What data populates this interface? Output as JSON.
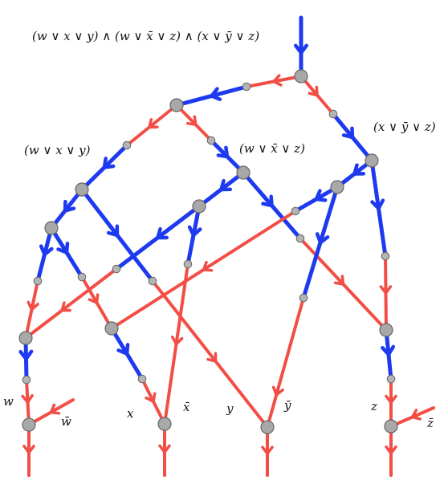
{
  "formula": "(w ∨ x ∨ y) ∧ (w ∨ x̄ ∨ z) ∧ (x ∨ ȳ ∨ z)",
  "clauses": [
    "(w ∨ x ∨ y)",
    "(w ∨ x̄ ∨ z)",
    "(x ∨ ȳ ∨ z)"
  ],
  "literals": {
    "w": "w",
    "w_bar": "w̄",
    "x": "x",
    "x_bar": "x̄",
    "y": "y",
    "y_bar": "ȳ",
    "z": "z",
    "z_bar": "z̄"
  },
  "colors": {
    "red": "#f24e45",
    "blue": "#1e3af0",
    "node": "#a8a8a8",
    "node_stroke": "#666666"
  }
}
